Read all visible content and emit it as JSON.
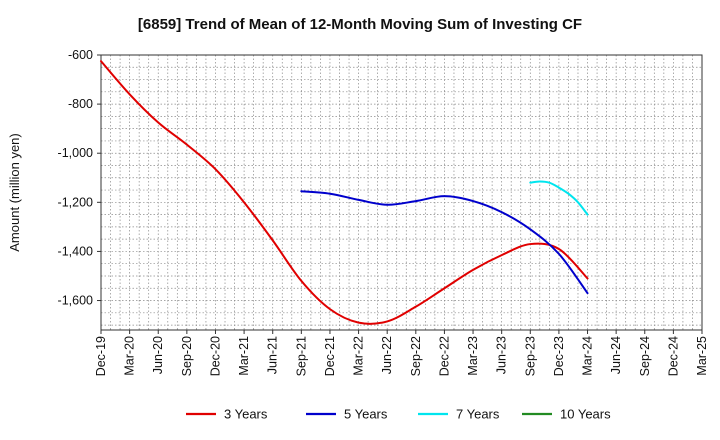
{
  "chart_data": {
    "type": "line",
    "title": "[6859]  Trend of Mean of 12-Month Moving Sum of Investing CF",
    "ylabel": "Amount (million yen)",
    "xlabel": "",
    "ylim": [
      -1720,
      -600
    ],
    "yticks": [
      -600,
      -800,
      -1000,
      -1200,
      -1400,
      -1600
    ],
    "ytick_labels": [
      "-600",
      "-800",
      "-1,000",
      "-1,200",
      "-1,400",
      "-1,600"
    ],
    "x_start": "Dec-19",
    "x_end": "Mar-25",
    "x_ticks": [
      "Dec-19",
      "Mar-20",
      "Jun-20",
      "Sep-20",
      "Dec-20",
      "Mar-21",
      "Jun-21",
      "Sep-21",
      "Dec-21",
      "Mar-22",
      "Jun-22",
      "Sep-22",
      "Dec-22",
      "Mar-23",
      "Jun-23",
      "Sep-23",
      "Dec-23",
      "Mar-24",
      "Jun-24",
      "Sep-24",
      "Dec-24",
      "Mar-25"
    ],
    "grid": true,
    "legend_position": "bottom",
    "series": [
      {
        "name": "3 Years",
        "color": "#e00000",
        "x": [
          "Dec-19",
          "Mar-20",
          "Jun-20",
          "Sep-20",
          "Dec-20",
          "Mar-21",
          "Jun-21",
          "Sep-21",
          "Dec-21",
          "Mar-22",
          "Jun-22",
          "Sep-22",
          "Dec-22",
          "Mar-23",
          "Jun-23",
          "Sep-23",
          "Dec-23",
          "Mar-24"
        ],
        "values": [
          -625,
          -760,
          -875,
          -965,
          -1065,
          -1200,
          -1355,
          -1520,
          -1635,
          -1690,
          -1685,
          -1625,
          -1550,
          -1475,
          -1415,
          -1370,
          -1390,
          -1510
        ]
      },
      {
        "name": "5 Years",
        "color": "#0000cc",
        "x": [
          "Sep-21",
          "Dec-21",
          "Mar-22",
          "Jun-22",
          "Sep-22",
          "Dec-22",
          "Mar-23",
          "Jun-23",
          "Sep-23",
          "Dec-23",
          "Mar-24"
        ],
        "values": [
          -1155,
          -1165,
          -1190,
          -1210,
          -1195,
          -1175,
          -1195,
          -1240,
          -1310,
          -1410,
          -1570
        ]
      },
      {
        "name": "7 Years",
        "color": "#00e5ee",
        "x": [
          "Sep-23",
          "Oct-23",
          "Nov-23",
          "Dec-23",
          "Jan-24",
          "Feb-24",
          "Mar-24"
        ],
        "values": [
          -1120,
          -1115,
          -1120,
          -1140,
          -1165,
          -1200,
          -1250
        ]
      },
      {
        "name": "10 Years",
        "color": "#228b22",
        "x": [],
        "values": []
      }
    ]
  }
}
